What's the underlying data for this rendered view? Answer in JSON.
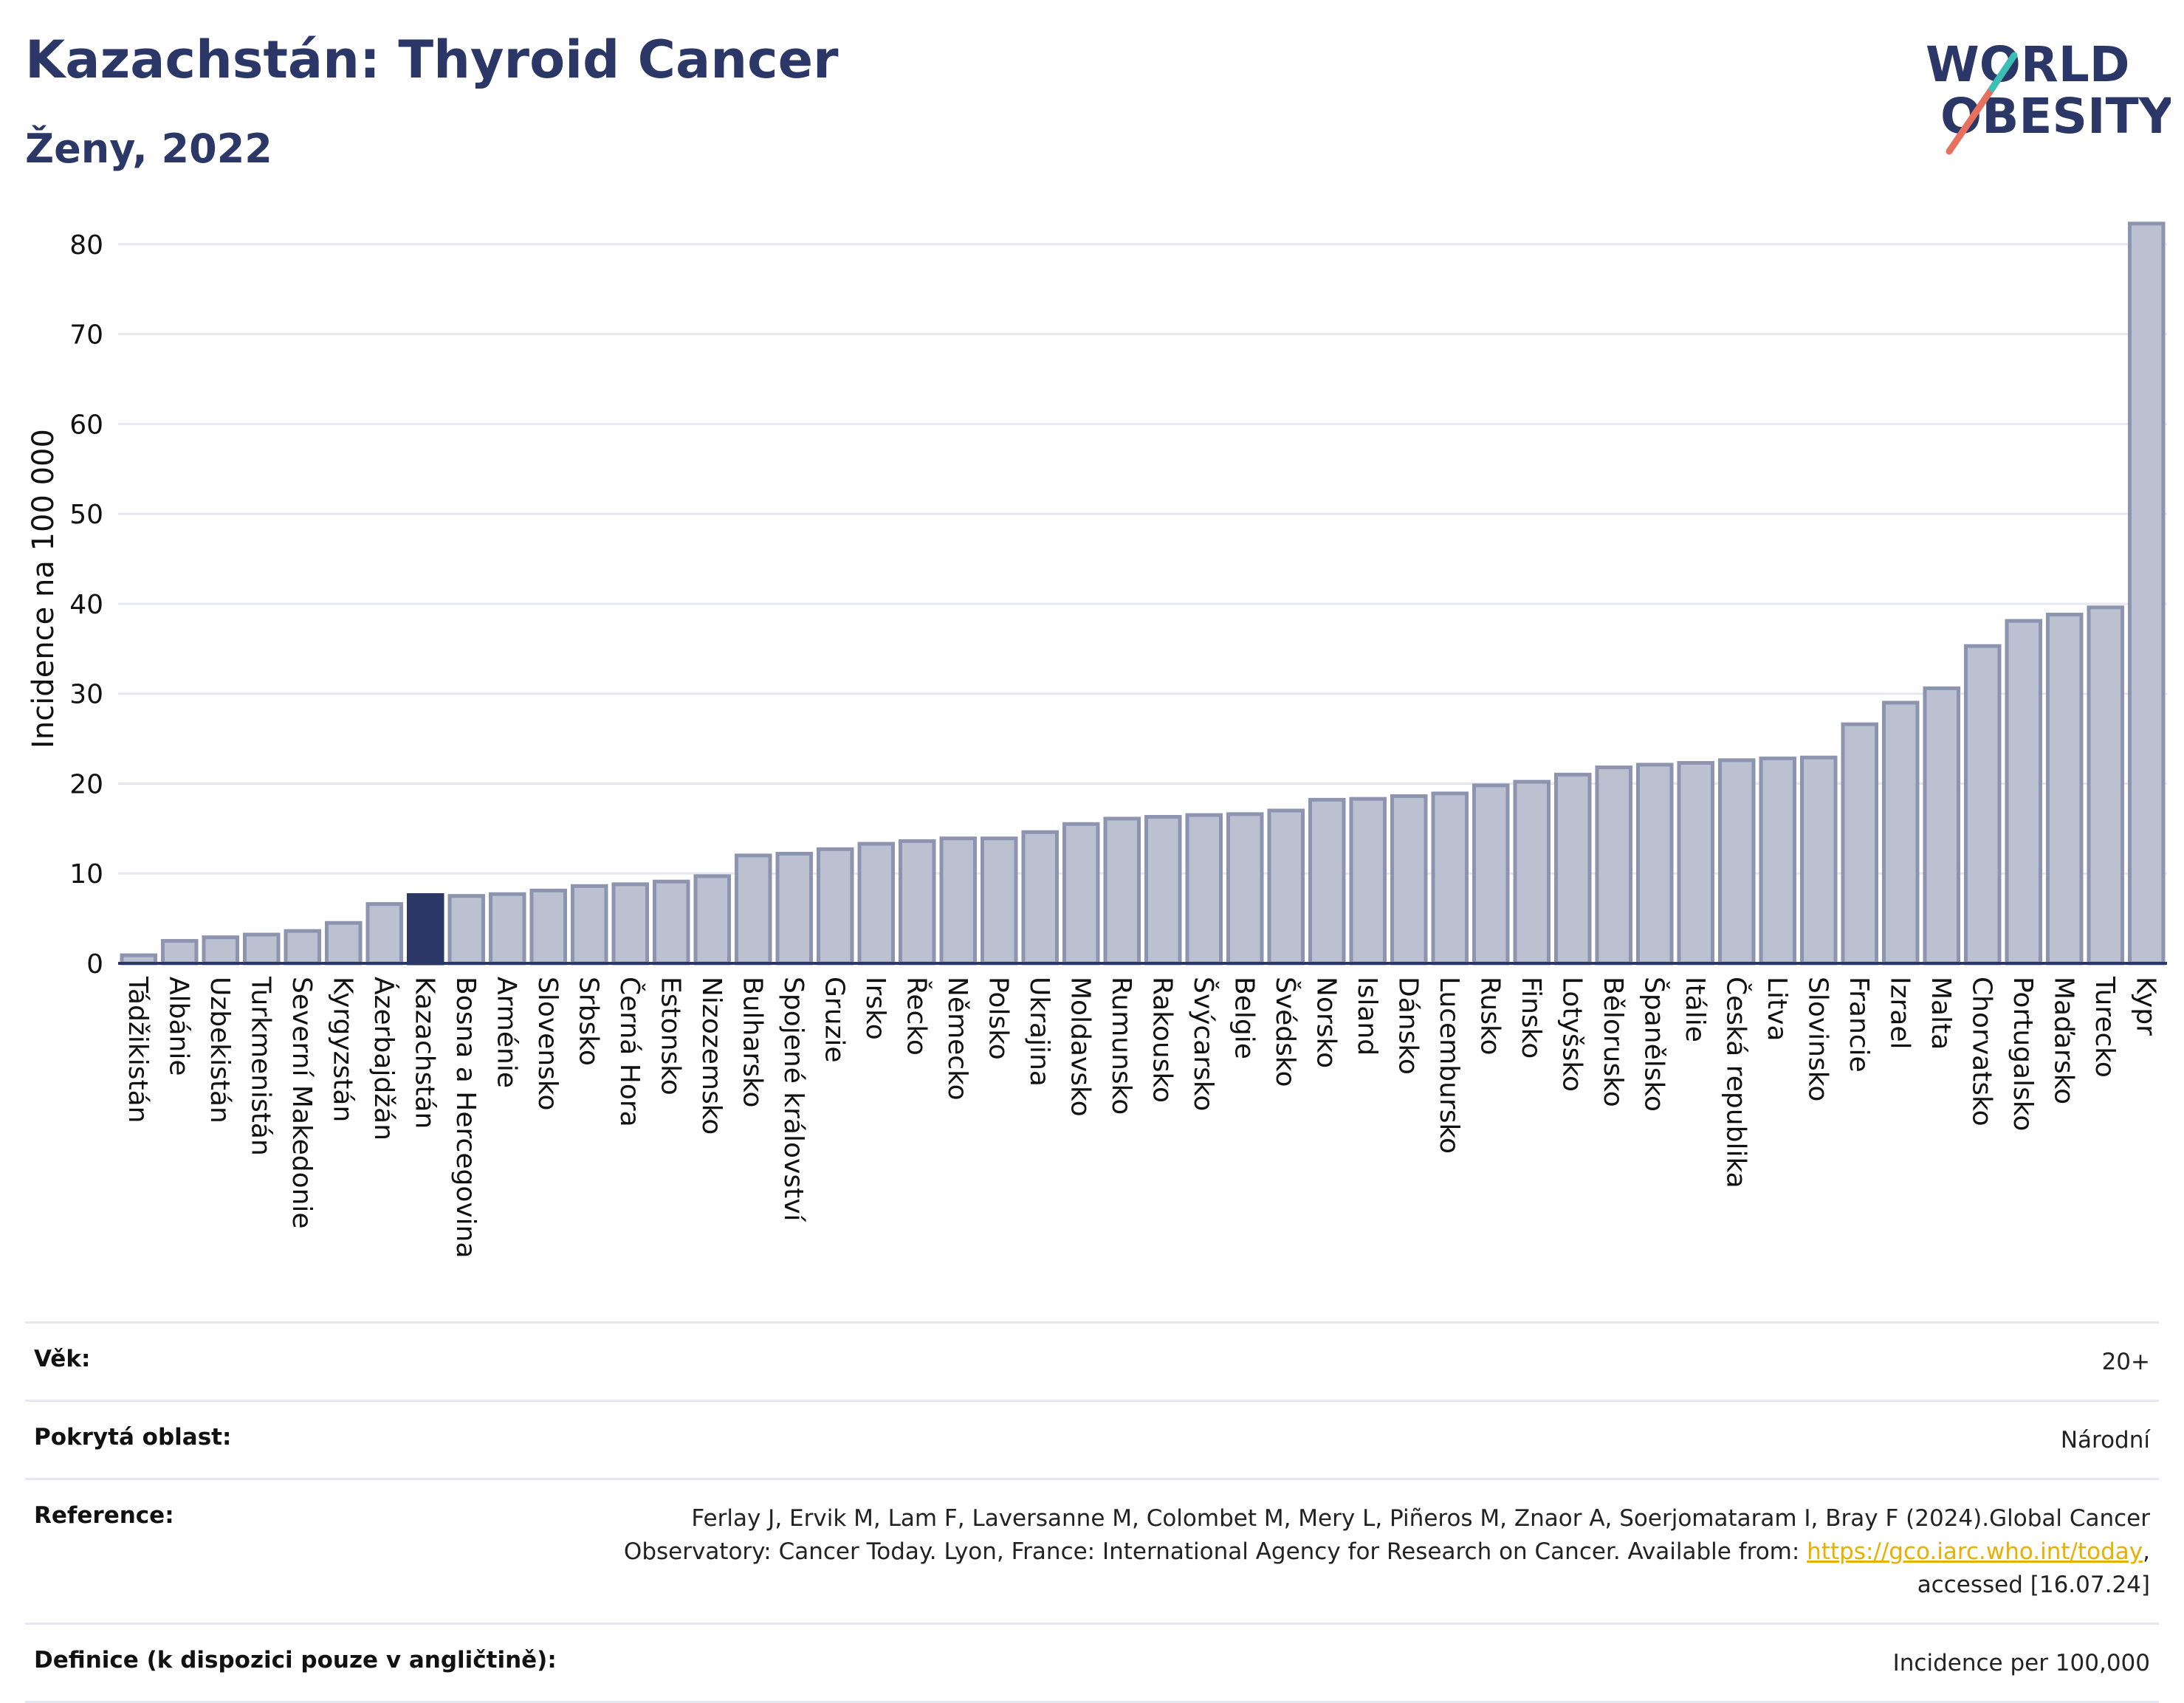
{
  "header": {
    "title": "Kazachstán: Thyroid Cancer",
    "subtitle": "Ženy, 2022"
  },
  "logo": {
    "line1": "WORLD",
    "line2": "OBESITY",
    "accent": "#e8705f",
    "accent2": "#3bbfb5"
  },
  "colors": {
    "bar": "#bcc1d1",
    "bar_edge": "#8d94b0",
    "highlight": "#2b3766",
    "axis": "#2b3766",
    "grid": "#e6e8ef"
  },
  "chart_data": {
    "type": "bar",
    "ylabel": "Incidence na 100 000",
    "ylim": [
      0,
      85
    ],
    "yticks": [
      0,
      10,
      20,
      30,
      40,
      50,
      60,
      70,
      80
    ],
    "grid": true,
    "highlight": "Kazachstán",
    "categories": [
      "Tádžikistán",
      "Albánie",
      "Uzbekistán",
      "Turkmenistán",
      "Severní Makedonie",
      "Kyrgyzstán",
      "Ázerbajdžán",
      "Kazachstán",
      "Bosna a Hercegovina",
      "Arménie",
      "Slovensko",
      "Srbsko",
      "Černá Hora",
      "Estonsko",
      "Nizozemsko",
      "Bulharsko",
      "Spojené království",
      "Gruzie",
      "Irsko",
      "Řecko",
      "Německo",
      "Polsko",
      "Ukrajina",
      "Moldavsko",
      "Rumunsko",
      "Rakousko",
      "Švýcarsko",
      "Belgie",
      "Švédsko",
      "Norsko",
      "Island",
      "Dánsko",
      "Lucembursko",
      "Rusko",
      "Finsko",
      "Lotyšsko",
      "Bělorusko",
      "Španělsko",
      "Itálie",
      "Česká republika",
      "Litva",
      "Slovinsko",
      "Francie",
      "Izrael",
      "Malta",
      "Chorvatsko",
      "Portugalsko",
      "Maďarsko",
      "Turecko",
      "Kypr"
    ],
    "values": [
      0.9,
      2.5,
      2.9,
      3.2,
      3.6,
      4.5,
      6.6,
      7.6,
      7.5,
      7.7,
      8.1,
      8.6,
      8.8,
      9.1,
      9.7,
      12.0,
      12.2,
      12.7,
      13.3,
      13.6,
      13.9,
      13.9,
      14.6,
      15.5,
      16.1,
      16.3,
      16.5,
      16.6,
      17.0,
      18.2,
      18.3,
      18.6,
      18.9,
      19.8,
      20.2,
      21.0,
      21.8,
      22.1,
      22.3,
      22.6,
      22.8,
      22.9,
      26.6,
      29.0,
      30.6,
      35.3,
      38.1,
      38.8,
      39.6,
      82.3
    ]
  },
  "info": {
    "age_label": "Věk:",
    "age_value": "20+",
    "area_label": "Pokrytá oblast:",
    "area_value": "Národní",
    "ref_label": "Reference:",
    "ref_text_1": "Ferlay J, Ervik M, Lam F, Laversanne M, Colombet M, Mery L, Piñeros M, Znaor A, Soerjomataram I, Bray F (2024).Global Cancer Observatory: Cancer Today. Lyon, France: International Agency for Research on Cancer. Available from: ",
    "ref_link": "https://gco.iarc.who.int/today",
    "ref_text_2": ", accessed [16.07.24]",
    "def_label": "Definice (k dispozici pouze v angličtině):",
    "def_value": "Incidence per 100,000"
  }
}
